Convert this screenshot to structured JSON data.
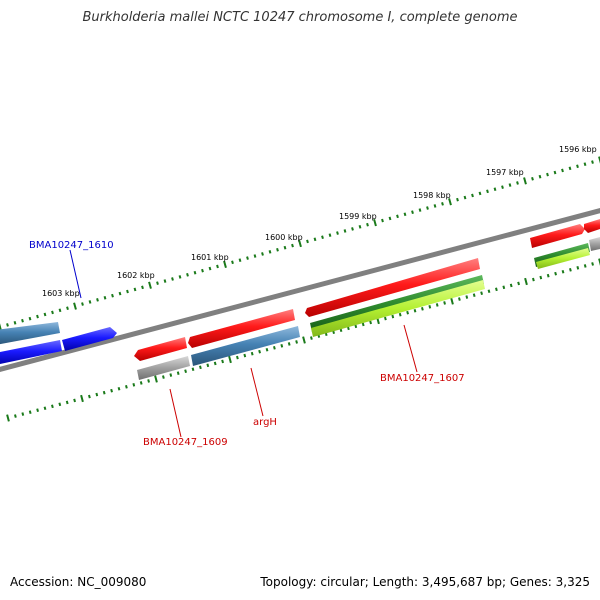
{
  "title": "Burkholderia mallei NCTC 10247 chromosome I, complete genome",
  "footer": {
    "accession": "Accession: NC_009080",
    "summary": "Topology: circular; Length: 3,495,687 bp; Genes: 3,325"
  },
  "colors": {
    "backbone": "#808080",
    "tick": "#1a7a1a",
    "red_gene": "#ff1a1a",
    "blue_gene": "#1a1aff",
    "steel_gene": "#4682b4",
    "gray_gene": "#a0a0a0",
    "green_gene": "#2e8b2e",
    "lime_gene": "#b4f032",
    "label_red": "#cc0000",
    "label_blue": "#0000cc"
  },
  "ticks": [
    {
      "label": "1596 kbp"
    },
    {
      "label": "1597 kbp"
    },
    {
      "label": "1598 kbp"
    },
    {
      "label": "1599 kbp"
    },
    {
      "label": "1600 kbp"
    },
    {
      "label": "1601 kbp"
    },
    {
      "label": "1602 kbp"
    },
    {
      "label": "1603 kbp"
    }
  ],
  "gene_labels": [
    {
      "name": "BMA10247_1610",
      "color": "blue"
    },
    {
      "name": "BMA10247_1609",
      "color": "red"
    },
    {
      "name": "argH",
      "color": "red"
    },
    {
      "name": "BMA10247_1607",
      "color": "red"
    }
  ]
}
